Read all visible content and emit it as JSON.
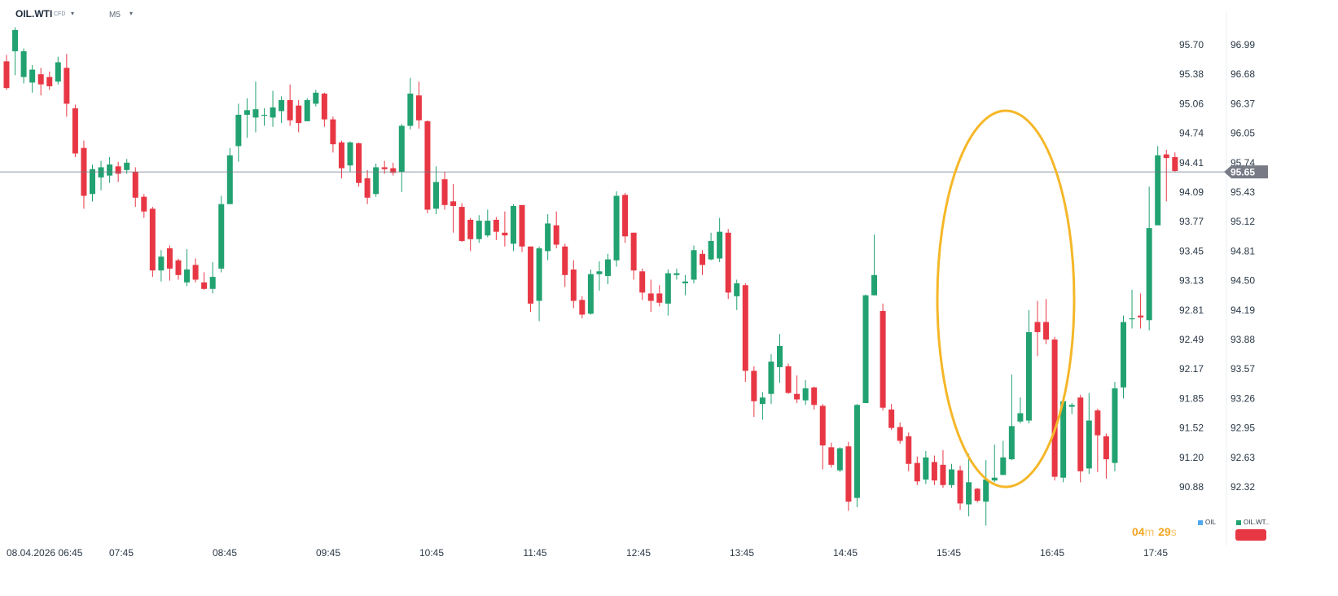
{
  "header": {
    "symbol": "OIL.WTI",
    "symbol_suffix": "CFD",
    "timeframe": "M5",
    "caret_icon": "▾"
  },
  "timer": {
    "m_val": "04",
    "m_unit": "m",
    "s_val": "29",
    "s_unit": "s"
  },
  "legend": [
    {
      "label": "OIL",
      "color": "#4fa9f0"
    },
    {
      "label": "OIL.WT..",
      "color": "#21a270"
    }
  ],
  "colors": {
    "up": "#21a270",
    "down": "#e83744",
    "annotation": "#f5b728",
    "line": "#6b7785",
    "price_tag": "#787b86"
  },
  "chart_data": {
    "type": "candlestick",
    "title": "",
    "x_start_label": "08.04.2026 06:45",
    "x_tick_labels": [
      "07:45",
      "08:45",
      "09:45",
      "10:45",
      "11:45",
      "12:45",
      "13:45",
      "14:45",
      "15:45",
      "16:45",
      "17:45"
    ],
    "y_axis_left": {
      "ticks": [
        "95.70",
        "95.38",
        "95.06",
        "94.74",
        "94.41",
        "94.09",
        "93.77",
        "93.45",
        "93.13",
        "92.81",
        "92.49",
        "92.17",
        "91.85",
        "91.52",
        "91.20",
        "90.88"
      ],
      "range": [
        90.36,
        96.15
      ]
    },
    "y_axis_right": {
      "ticks": [
        "96.99",
        "96.68",
        "96.37",
        "96.05",
        "95.74",
        "95.43",
        "95.12",
        "94.81",
        "94.50",
        "94.19",
        "93.88",
        "93.57",
        "93.26",
        "92.95",
        "92.63",
        "92.32"
      ]
    },
    "current_price": {
      "left_axis_value": 94.32,
      "right_label": "95.65"
    },
    "annotation": "highlight ellipse around the rally from 15:45 to 16:45",
    "candles": [
      [
        95.52,
        95.23,
        95.59,
        95.21
      ],
      [
        95.63,
        95.86,
        95.89,
        95.37
      ],
      [
        95.35,
        95.63,
        95.66,
        95.28
      ],
      [
        95.29,
        95.43,
        95.48,
        95.18
      ],
      [
        95.38,
        95.27,
        95.45,
        95.15
      ],
      [
        95.35,
        95.25,
        95.41,
        95.21
      ],
      [
        95.3,
        95.51,
        95.57,
        95.27
      ],
      [
        95.45,
        95.06,
        95.6,
        94.92
      ],
      [
        95.01,
        94.52,
        95.05,
        94.48
      ],
      [
        94.58,
        94.06,
        94.66,
        93.92
      ],
      [
        94.08,
        94.35,
        94.4,
        94.0
      ],
      [
        94.26,
        94.37,
        94.44,
        94.12
      ],
      [
        94.28,
        94.4,
        94.48,
        94.2
      ],
      [
        94.38,
        94.3,
        94.43,
        94.21
      ],
      [
        94.34,
        94.42,
        94.46,
        94.3
      ],
      [
        94.32,
        94.04,
        94.37,
        93.94
      ],
      [
        94.05,
        93.89,
        94.08,
        93.82
      ],
      [
        93.92,
        93.25,
        93.94,
        93.18
      ],
      [
        93.25,
        93.4,
        93.47,
        93.13
      ],
      [
        93.49,
        93.27,
        93.52,
        93.14
      ],
      [
        93.36,
        93.2,
        93.38,
        93.15
      ],
      [
        93.12,
        93.26,
        93.48,
        93.08
      ],
      [
        93.31,
        93.15,
        93.38,
        93.12
      ],
      [
        93.12,
        93.05,
        93.23,
        93.04
      ],
      [
        93.05,
        93.18,
        93.34,
        93.0
      ],
      [
        93.27,
        93.97,
        94.06,
        93.23
      ],
      [
        93.97,
        94.5,
        94.58,
        93.97
      ],
      [
        94.6,
        94.94,
        95.06,
        94.43
      ],
      [
        94.94,
        94.99,
        95.12,
        94.69
      ],
      [
        94.91,
        95.0,
        95.3,
        94.75
      ],
      [
        94.93,
        94.94,
        95.01,
        94.82
      ],
      [
        94.91,
        95.02,
        95.2,
        94.81
      ],
      [
        94.98,
        95.1,
        95.14,
        94.85
      ],
      [
        95.1,
        94.88,
        95.27,
        94.82
      ],
      [
        95.04,
        94.85,
        95.1,
        94.75
      ],
      [
        94.87,
        95.1,
        95.12,
        94.87
      ],
      [
        95.06,
        95.18,
        95.21,
        95.03
      ],
      [
        95.17,
        94.89,
        95.18,
        94.81
      ],
      [
        94.89,
        94.62,
        94.92,
        94.53
      ],
      [
        94.64,
        94.36,
        94.66,
        94.25
      ],
      [
        94.39,
        94.64,
        94.65,
        94.32
      ],
      [
        94.63,
        94.2,
        94.64,
        94.16
      ],
      [
        94.25,
        94.04,
        94.34,
        93.97
      ],
      [
        94.08,
        94.37,
        94.41,
        94.05
      ],
      [
        94.37,
        94.35,
        94.44,
        94.3
      ],
      [
        94.36,
        94.31,
        94.42,
        94.28
      ],
      [
        94.32,
        94.82,
        94.84,
        94.1
      ],
      [
        94.82,
        95.17,
        95.34,
        94.78
      ],
      [
        95.15,
        94.88,
        95.3,
        94.79
      ],
      [
        94.87,
        93.91,
        94.88,
        93.87
      ],
      [
        93.92,
        94.21,
        94.38,
        93.86
      ],
      [
        94.24,
        93.96,
        94.32,
        93.91
      ],
      [
        94.0,
        93.95,
        94.19,
        93.66
      ],
      [
        93.94,
        93.57,
        93.98,
        93.56
      ],
      [
        93.8,
        93.59,
        93.82,
        93.46
      ],
      [
        93.59,
        93.79,
        93.85,
        93.55
      ],
      [
        93.63,
        93.79,
        93.91,
        93.61
      ],
      [
        93.8,
        93.67,
        93.83,
        93.58
      ],
      [
        93.66,
        93.63,
        93.89,
        93.51
      ],
      [
        93.54,
        93.95,
        93.97,
        93.46
      ],
      [
        93.96,
        93.51,
        93.96,
        93.45
      ],
      [
        93.51,
        92.89,
        93.51,
        92.8
      ],
      [
        92.92,
        93.49,
        93.51,
        92.7
      ],
      [
        93.46,
        93.76,
        93.86,
        93.36
      ],
      [
        93.74,
        93.53,
        93.89,
        93.49
      ],
      [
        93.51,
        93.2,
        93.54,
        93.07
      ],
      [
        93.26,
        92.92,
        93.36,
        92.84
      ],
      [
        92.93,
        92.77,
        92.97,
        92.73
      ],
      [
        92.78,
        93.21,
        93.26,
        92.77
      ],
      [
        93.21,
        93.24,
        93.35,
        93.03
      ],
      [
        93.19,
        93.37,
        93.43,
        93.1
      ],
      [
        93.36,
        94.06,
        94.11,
        93.29
      ],
      [
        94.07,
        93.62,
        94.09,
        93.55
      ],
      [
        93.66,
        93.25,
        93.66,
        93.15
      ],
      [
        93.24,
        93.01,
        93.27,
        92.93
      ],
      [
        93.0,
        92.92,
        93.15,
        92.8
      ],
      [
        93.0,
        92.9,
        93.09,
        92.86
      ],
      [
        92.89,
        93.22,
        93.26,
        92.76
      ],
      [
        93.2,
        93.22,
        93.27,
        93.15
      ],
      [
        93.11,
        93.13,
        93.2,
        92.98
      ],
      [
        93.15,
        93.47,
        93.52,
        93.11
      ],
      [
        93.43,
        93.31,
        93.47,
        93.2
      ],
      [
        93.37,
        93.57,
        93.66,
        93.36
      ],
      [
        93.38,
        93.67,
        93.82,
        93.34
      ],
      [
        93.66,
        93.01,
        93.7,
        92.94
      ],
      [
        92.97,
        93.11,
        93.15,
        92.82
      ],
      [
        93.09,
        92.16,
        93.11,
        92.04
      ],
      [
        92.16,
        91.83,
        92.21,
        91.66
      ],
      [
        91.8,
        91.87,
        91.93,
        91.63
      ],
      [
        91.91,
        92.26,
        92.34,
        91.8
      ],
      [
        92.2,
        92.43,
        92.56,
        92.03
      ],
      [
        92.21,
        91.92,
        92.24,
        91.91
      ],
      [
        91.91,
        91.85,
        92.11,
        91.81
      ],
      [
        91.84,
        91.97,
        92.06,
        91.79
      ],
      [
        91.98,
        91.79,
        91.99,
        91.74
      ],
      [
        91.78,
        91.35,
        91.8,
        91.09
      ],
      [
        91.33,
        91.14,
        91.38,
        91.11
      ],
      [
        91.08,
        91.32,
        91.33,
        91.06
      ],
      [
        91.34,
        90.74,
        91.39,
        90.64
      ],
      [
        90.78,
        91.79,
        91.8,
        90.68
      ],
      [
        91.81,
        92.98,
        92.99,
        91.83
      ],
      [
        92.98,
        93.2,
        93.64,
        92.98
      ],
      [
        92.81,
        91.76,
        92.89,
        91.73
      ],
      [
        91.74,
        91.54,
        91.8,
        91.52
      ],
      [
        91.55,
        91.4,
        91.6,
        91.37
      ],
      [
        91.45,
        91.15,
        91.49,
        91.07
      ],
      [
        91.16,
        90.96,
        91.23,
        90.92
      ],
      [
        90.98,
        91.22,
        91.29,
        90.93
      ],
      [
        91.17,
        90.97,
        91.24,
        90.92
      ],
      [
        91.14,
        90.92,
        91.3,
        90.89
      ],
      [
        90.92,
        91.09,
        91.15,
        90.89
      ],
      [
        91.08,
        90.72,
        91.13,
        90.65
      ],
      [
        90.71,
        90.95,
        91.26,
        90.58
      ],
      [
        90.88,
        90.75,
        90.89,
        90.73
      ],
      [
        90.74,
        90.98,
        91.19,
        90.48
      ],
      [
        90.97,
        91.0,
        91.36,
        90.95
      ],
      [
        91.03,
        91.22,
        91.4,
        91.03
      ],
      [
        91.2,
        91.56,
        92.12,
        91.19
      ],
      [
        91.61,
        91.7,
        91.87,
        91.59
      ],
      [
        91.62,
        92.58,
        92.82,
        91.59
      ],
      [
        92.69,
        92.58,
        92.92,
        92.32
      ],
      [
        92.69,
        92.5,
        92.94,
        92.45
      ],
      [
        92.5,
        91.01,
        92.53,
        90.97
      ],
      [
        91.0,
        91.83,
        91.88,
        90.95
      ],
      [
        91.77,
        91.79,
        91.81,
        91.69
      ],
      [
        91.87,
        91.07,
        91.9,
        90.95
      ],
      [
        91.1,
        91.62,
        91.92,
        91.04
      ],
      [
        91.73,
        91.46,
        91.75,
        91.06
      ],
      [
        91.45,
        91.2,
        91.48,
        90.99
      ],
      [
        91.16,
        91.97,
        92.04,
        91.07
      ],
      [
        91.98,
        92.69,
        92.76,
        91.86
      ],
      [
        92.72,
        92.73,
        93.04,
        92.62
      ],
      [
        92.76,
        92.74,
        93.0,
        92.62
      ],
      [
        92.71,
        93.71,
        94.16,
        92.6
      ],
      [
        93.74,
        94.5,
        94.6,
        93.77
      ],
      [
        94.51,
        94.47,
        94.56,
        94.0
      ],
      [
        94.48,
        94.33,
        94.53,
        94.32
      ]
    ]
  }
}
